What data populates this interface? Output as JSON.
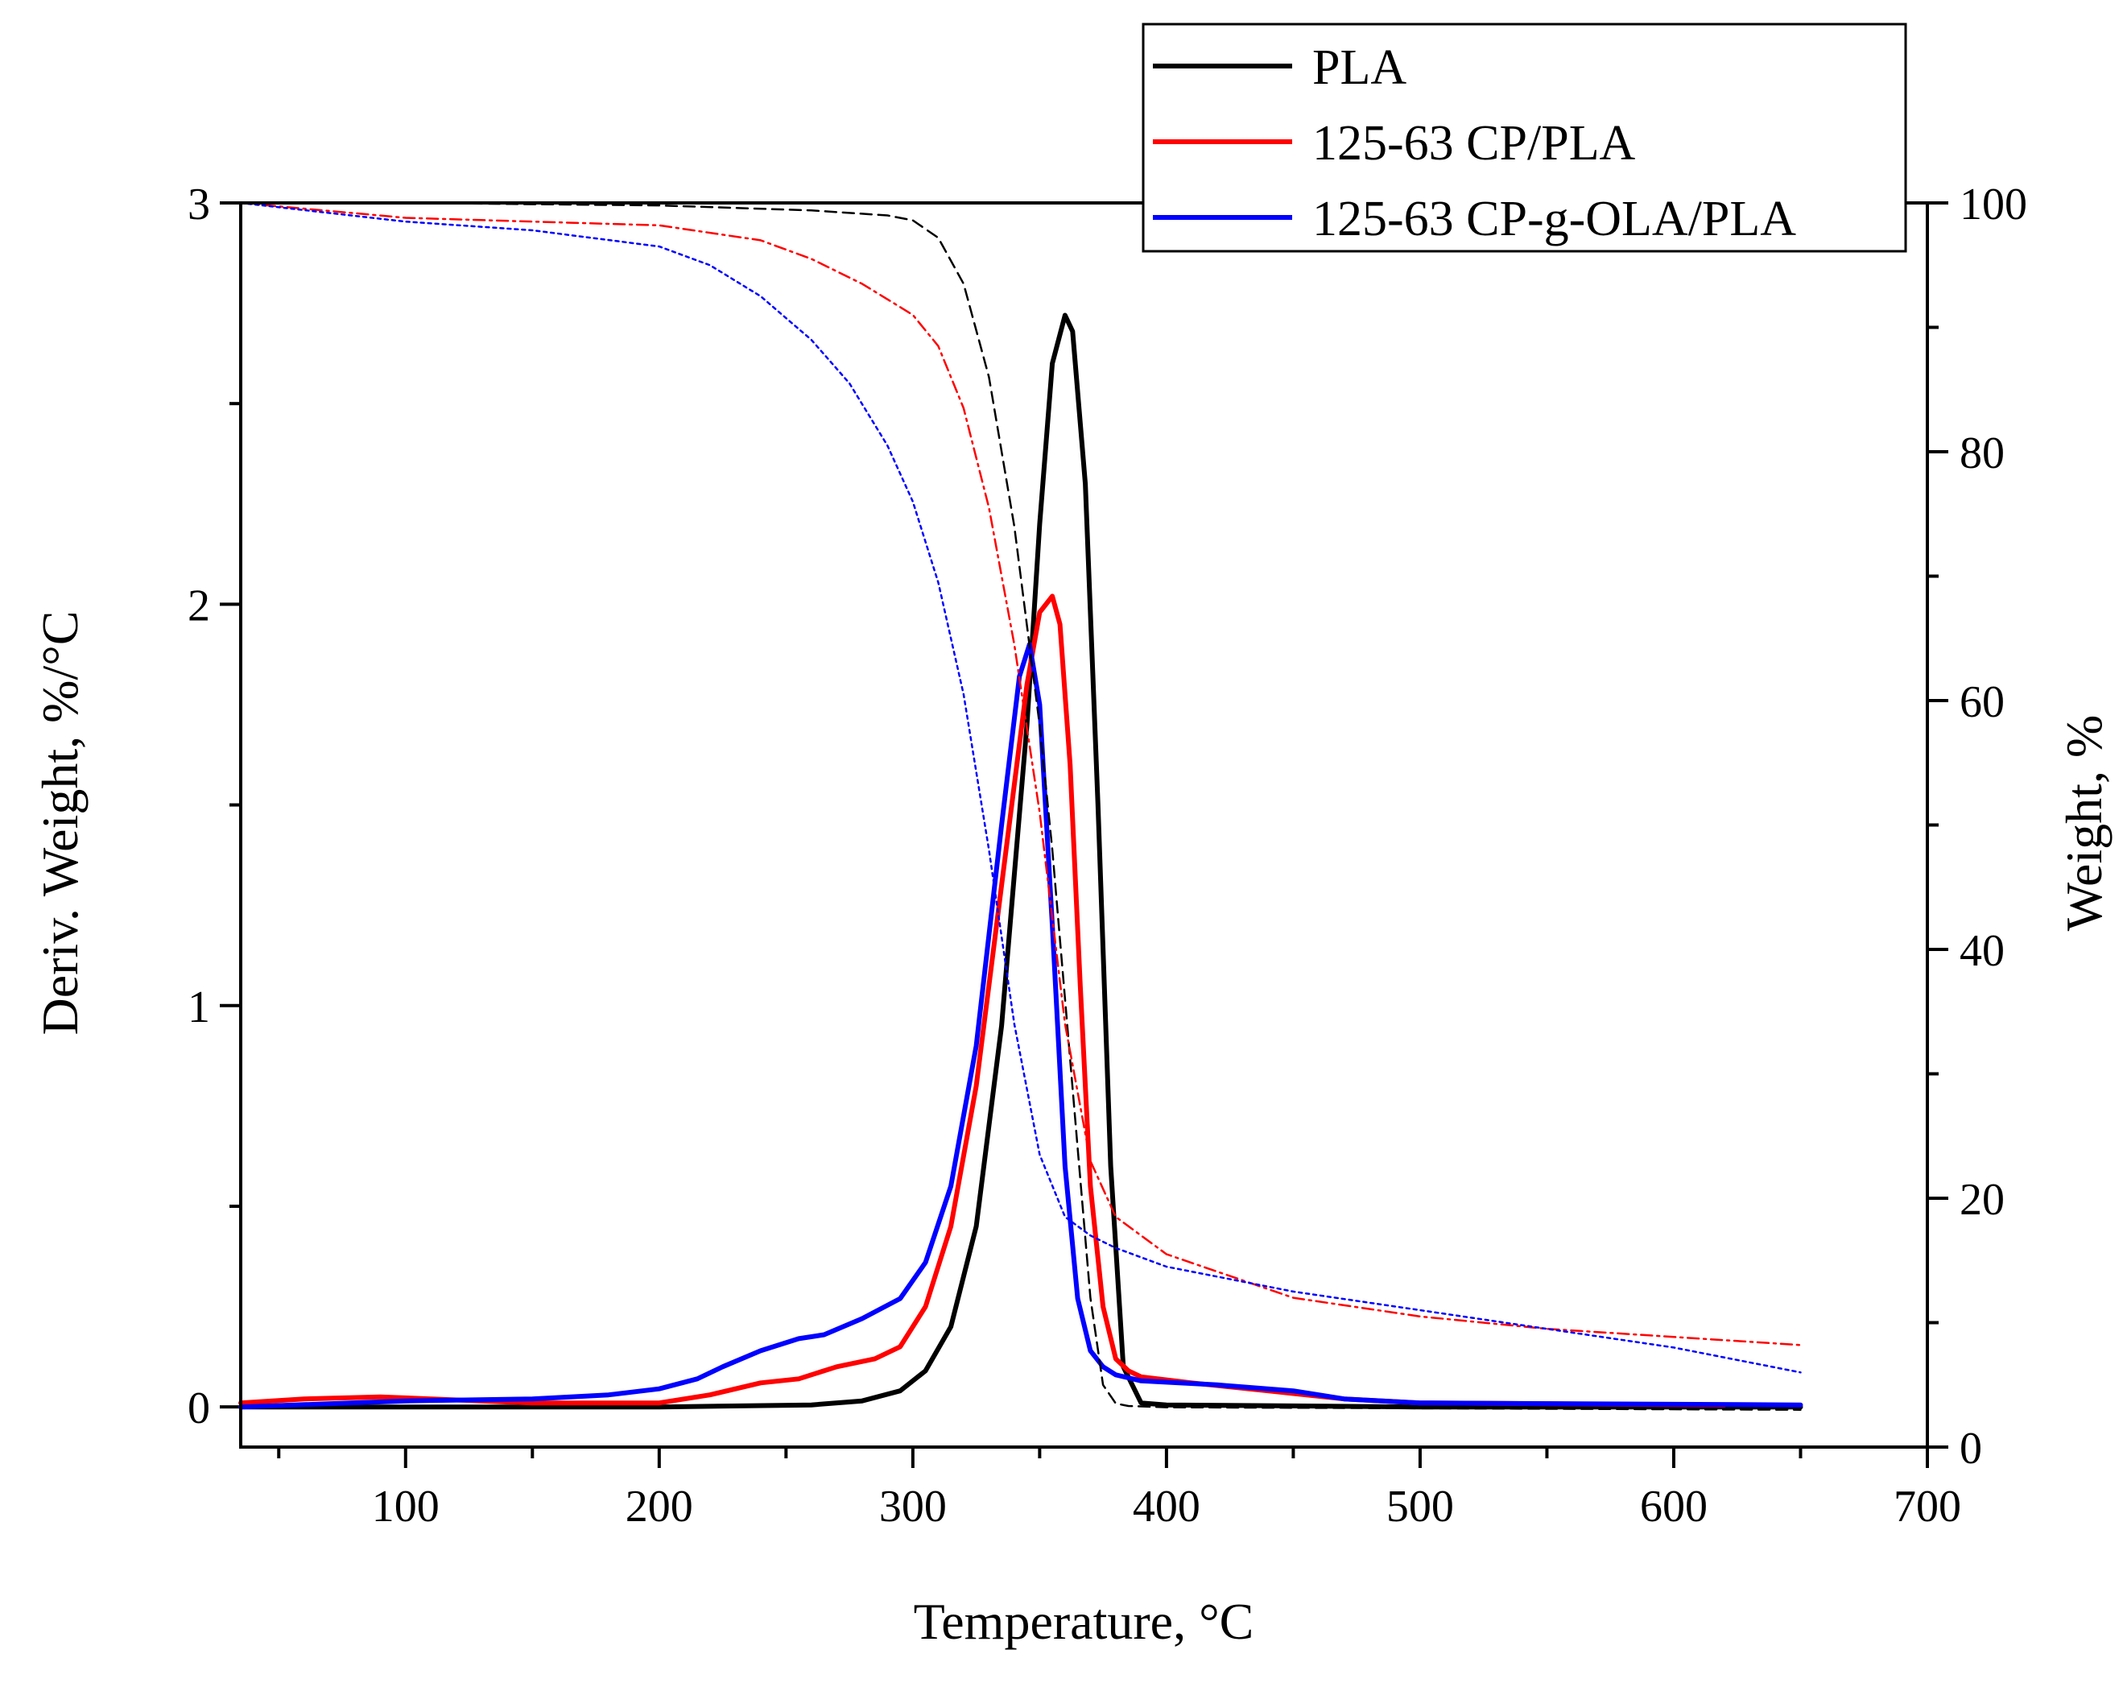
{
  "chart_data": {
    "type": "line",
    "title": "",
    "xlabel": "Temperature, °C",
    "ylabel_left": "Deriv. Weight, %/°C",
    "ylabel_right": "Weight, %",
    "xlim": [
      35,
      700
    ],
    "ylim_left": [
      -0.1,
      3.0
    ],
    "ylim_right": [
      0,
      100
    ],
    "x_ticks": [
      100,
      200,
      300,
      400,
      500,
      600,
      700
    ],
    "y_left_ticks": [
      0,
      1,
      2,
      3
    ],
    "y_right_ticks": [
      0,
      20,
      40,
      60,
      80,
      100
    ],
    "legend_position": "top-right",
    "series": [
      {
        "name": "PLA",
        "color": "#000000",
        "axis": "left",
        "style": "solid",
        "in_legend": true,
        "x": [
          35,
          100,
          200,
          260,
          280,
          295,
          305,
          315,
          325,
          335,
          345,
          350,
          355,
          360,
          363,
          368,
          373,
          378,
          383,
          390,
          400,
          500,
          650
        ],
        "values": [
          0,
          0,
          0,
          0.005,
          0.015,
          0.04,
          0.09,
          0.2,
          0.45,
          0.95,
          1.7,
          2.2,
          2.6,
          2.72,
          2.68,
          2.3,
          1.5,
          0.6,
          0.1,
          0.01,
          0.005,
          0,
          0
        ]
      },
      {
        "name": "125-63 CP/PLA",
        "color": "#ff0000",
        "axis": "left",
        "style": "solid",
        "in_legend": true,
        "x": [
          35,
          60,
          90,
          110,
          150,
          200,
          220,
          240,
          255,
          270,
          285,
          295,
          305,
          315,
          325,
          335,
          345,
          350,
          355,
          358,
          362,
          366,
          370,
          375,
          380,
          385,
          390,
          410,
          440,
          470,
          500,
          620
        ],
        "values": [
          0.01,
          0.02,
          0.025,
          0.02,
          0.01,
          0.01,
          0.03,
          0.06,
          0.07,
          0.1,
          0.12,
          0.15,
          0.25,
          0.45,
          0.8,
          1.3,
          1.8,
          1.98,
          2.02,
          1.95,
          1.6,
          1.05,
          0.55,
          0.25,
          0.12,
          0.09,
          0.075,
          0.06,
          0.04,
          0.02,
          0.01,
          0.005
        ]
      },
      {
        "name": "125-63 CP-g-OLA/PLA",
        "color": "#0000ff",
        "axis": "left",
        "style": "solid",
        "in_legend": true,
        "x": [
          35,
          100,
          150,
          180,
          200,
          215,
          225,
          240,
          255,
          265,
          280,
          295,
          305,
          315,
          325,
          335,
          342,
          346,
          350,
          355,
          360,
          365,
          370,
          375,
          380,
          390,
          420,
          450,
          470,
          500,
          650
        ],
        "values": [
          0,
          0.015,
          0.02,
          0.03,
          0.045,
          0.07,
          0.1,
          0.14,
          0.17,
          0.18,
          0.22,
          0.27,
          0.36,
          0.55,
          0.9,
          1.45,
          1.82,
          1.9,
          1.75,
          1.2,
          0.6,
          0.27,
          0.14,
          0.1,
          0.08,
          0.065,
          0.055,
          0.04,
          0.02,
          0.01,
          0.005
        ]
      },
      {
        "name": "PLA weight",
        "color": "#000000",
        "axis": "right",
        "style": "dashed",
        "in_legend": false,
        "x": [
          35,
          100,
          200,
          260,
          290,
          300,
          310,
          320,
          330,
          340,
          350,
          355,
          360,
          365,
          370,
          375,
          380,
          385,
          400,
          650
        ],
        "values": [
          100,
          100,
          99.8,
          99.4,
          99.0,
          98.6,
          97.2,
          93.5,
          86,
          74,
          58,
          48,
          36,
          24,
          12,
          5,
          3.5,
          3.3,
          3.2,
          3.0
        ]
      },
      {
        "name": "125-63 CP/PLA weight",
        "color": "#ff0000",
        "axis": "right",
        "style": "dashdot",
        "in_legend": false,
        "x": [
          35,
          100,
          150,
          200,
          240,
          260,
          280,
          300,
          310,
          320,
          330,
          340,
          350,
          360,
          370,
          380,
          400,
          450,
          500,
          550,
          650
        ],
        "values": [
          100,
          98.8,
          98.5,
          98.2,
          97,
          95.5,
          93.5,
          91,
          88.5,
          83.5,
          75.5,
          64.5,
          51,
          34,
          23,
          18.5,
          15.5,
          12,
          10.5,
          9.5,
          8.2
        ]
      },
      {
        "name": "125-63 CP-g-OLA/PLA weight",
        "color": "#0000ff",
        "axis": "right",
        "style": "dotted",
        "in_legend": false,
        "x": [
          35,
          100,
          150,
          200,
          220,
          240,
          260,
          275,
          290,
          300,
          310,
          320,
          330,
          340,
          350,
          360,
          370,
          380,
          400,
          450,
          500,
          550,
          600,
          650
        ],
        "values": [
          100,
          98.5,
          97.8,
          96.5,
          95,
          92.5,
          89,
          85.5,
          80.5,
          76,
          69.5,
          60.5,
          48,
          34,
          23.5,
          18.5,
          17,
          16,
          14.5,
          12.5,
          11,
          9.5,
          8,
          6
        ]
      }
    ]
  }
}
